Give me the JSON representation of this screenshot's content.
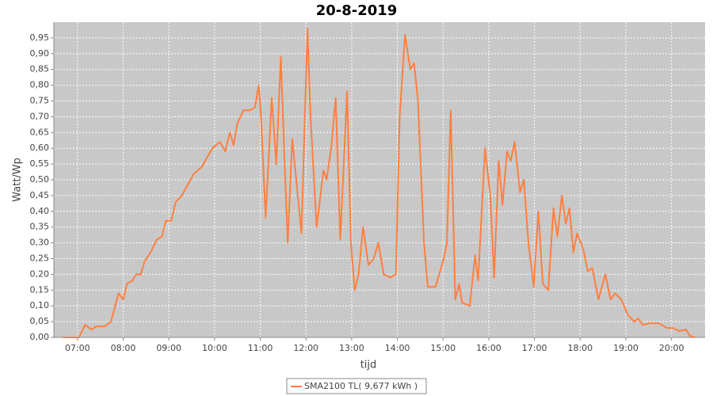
{
  "chart_data": {
    "type": "line",
    "title": "20-8-2019",
    "x_label": "tijd",
    "y_label": "Watt/Wp",
    "grid": true,
    "legend": "bottom",
    "background": "#c8c8c8",
    "xlim": [
      "06:29",
      "20:44"
    ],
    "xticks": [
      "07:00",
      "08:00",
      "09:00",
      "10:00",
      "11:00",
      "12:00",
      "13:00",
      "14:00",
      "15:00",
      "16:00",
      "17:00",
      "18:00",
      "19:00",
      "20:00"
    ],
    "ylim": [
      0,
      1.0
    ],
    "yticks": [
      {
        "value": 0,
        "label": "0,00"
      },
      {
        "value": 0.05,
        "label": "0,05"
      },
      {
        "value": 0.1,
        "label": "0,10"
      },
      {
        "value": 0.15,
        "label": "0,15"
      },
      {
        "value": 0.2,
        "label": "0,20"
      },
      {
        "value": 0.25,
        "label": "0,25"
      },
      {
        "value": 0.3,
        "label": "0,30"
      },
      {
        "value": 0.35,
        "label": "0,35"
      },
      {
        "value": 0.4,
        "label": "0,40"
      },
      {
        "value": 0.45,
        "label": "0,45"
      },
      {
        "value": 0.5,
        "label": "0,50"
      },
      {
        "value": 0.55,
        "label": "0,55"
      },
      {
        "value": 0.6,
        "label": "0,60"
      },
      {
        "value": 0.65,
        "label": "0,65"
      },
      {
        "value": 0.7,
        "label": "0,70"
      },
      {
        "value": 0.75,
        "label": "0,75"
      },
      {
        "value": 0.8,
        "label": "0,80"
      },
      {
        "value": 0.85,
        "label": "0,85"
      },
      {
        "value": 0.9,
        "label": "0,90"
      },
      {
        "value": 0.95,
        "label": "0,95"
      }
    ],
    "x": [
      "06:41",
      "07:02",
      "07:10",
      "07:18",
      "07:25",
      "07:36",
      "07:44",
      "07:54",
      "08:00",
      "08:05",
      "08:12",
      "08:17",
      "08:23",
      "08:28",
      "08:36",
      "08:44",
      "08:51",
      "08:56",
      "09:03",
      "09:09",
      "09:17",
      "09:26",
      "09:33",
      "09:43",
      "09:50",
      "09:57",
      "10:07",
      "10:14",
      "10:20",
      "10:25",
      "10:30",
      "10:38",
      "10:46",
      "10:53",
      "10:58",
      "11:01",
      "11:07",
      "11:15",
      "11:21",
      "11:27",
      "11:32",
      "11:36",
      "11:42",
      "11:48",
      "11:54",
      "12:02",
      "12:06",
      "12:14",
      "12:23",
      "12:27",
      "12:33",
      "12:39",
      "12:45",
      "12:54",
      "12:59",
      "13:04",
      "13:09",
      "13:15",
      "13:22",
      "13:29",
      "13:35",
      "13:42",
      "13:51",
      "13:58",
      "14:03",
      "14:10",
      "14:17",
      "14:22",
      "14:27",
      "14:35",
      "14:40",
      "14:50",
      "15:01",
      "15:05",
      "15:10",
      "15:16",
      "15:21",
      "15:25",
      "15:35",
      "15:42",
      "15:46",
      "15:55",
      "16:02",
      "16:07",
      "16:13",
      "16:18",
      "16:24",
      "16:29",
      "16:34",
      "16:41",
      "16:46",
      "16:52",
      "16:59",
      "17:05",
      "17:11",
      "17:18",
      "17:25",
      "17:30",
      "17:36",
      "17:41",
      "17:46",
      "17:51",
      "17:56",
      "18:04",
      "18:10",
      "18:16",
      "18:24",
      "18:33",
      "18:40",
      "18:46",
      "18:54",
      "19:03",
      "19:11",
      "19:16",
      "19:22",
      "19:32",
      "19:43",
      "19:54",
      "20:02",
      "20:10",
      "20:19",
      "20:24",
      "20:31"
    ],
    "series": [
      {
        "name": "SMA2100 TL( 9,677 kWh )",
        "color": "#ff7f3f",
        "values": [
          0,
          0,
          0.04,
          0.025,
          0.035,
          0.035,
          0.05,
          0.14,
          0.12,
          0.17,
          0.18,
          0.2,
          0.2,
          0.24,
          0.27,
          0.31,
          0.32,
          0.37,
          0.37,
          0.43,
          0.45,
          0.49,
          0.52,
          0.54,
          0.57,
          0.6,
          0.62,
          0.59,
          0.65,
          0.61,
          0.68,
          0.72,
          0.72,
          0.73,
          0.8,
          0.7,
          0.38,
          0.76,
          0.55,
          0.89,
          0.55,
          0.3,
          0.63,
          0.48,
          0.33,
          0.98,
          0.7,
          0.35,
          0.53,
          0.5,
          0.6,
          0.76,
          0.31,
          0.78,
          0.3,
          0.15,
          0.2,
          0.35,
          0.23,
          0.25,
          0.3,
          0.2,
          0.19,
          0.2,
          0.7,
          0.96,
          0.85,
          0.87,
          0.75,
          0.3,
          0.16,
          0.16,
          0.25,
          0.3,
          0.72,
          0.12,
          0.17,
          0.11,
          0.1,
          0.26,
          0.18,
          0.6,
          0.45,
          0.19,
          0.56,
          0.42,
          0.59,
          0.56,
          0.62,
          0.46,
          0.5,
          0.3,
          0.16,
          0.4,
          0.17,
          0.15,
          0.41,
          0.32,
          0.45,
          0.36,
          0.41,
          0.27,
          0.33,
          0.28,
          0.21,
          0.22,
          0.12,
          0.2,
          0.12,
          0.14,
          0.12,
          0.07,
          0.05,
          0.06,
          0.04,
          0.045,
          0.045,
          0.03,
          0.03,
          0.02,
          0.025,
          0.005,
          0
        ]
      }
    ]
  }
}
